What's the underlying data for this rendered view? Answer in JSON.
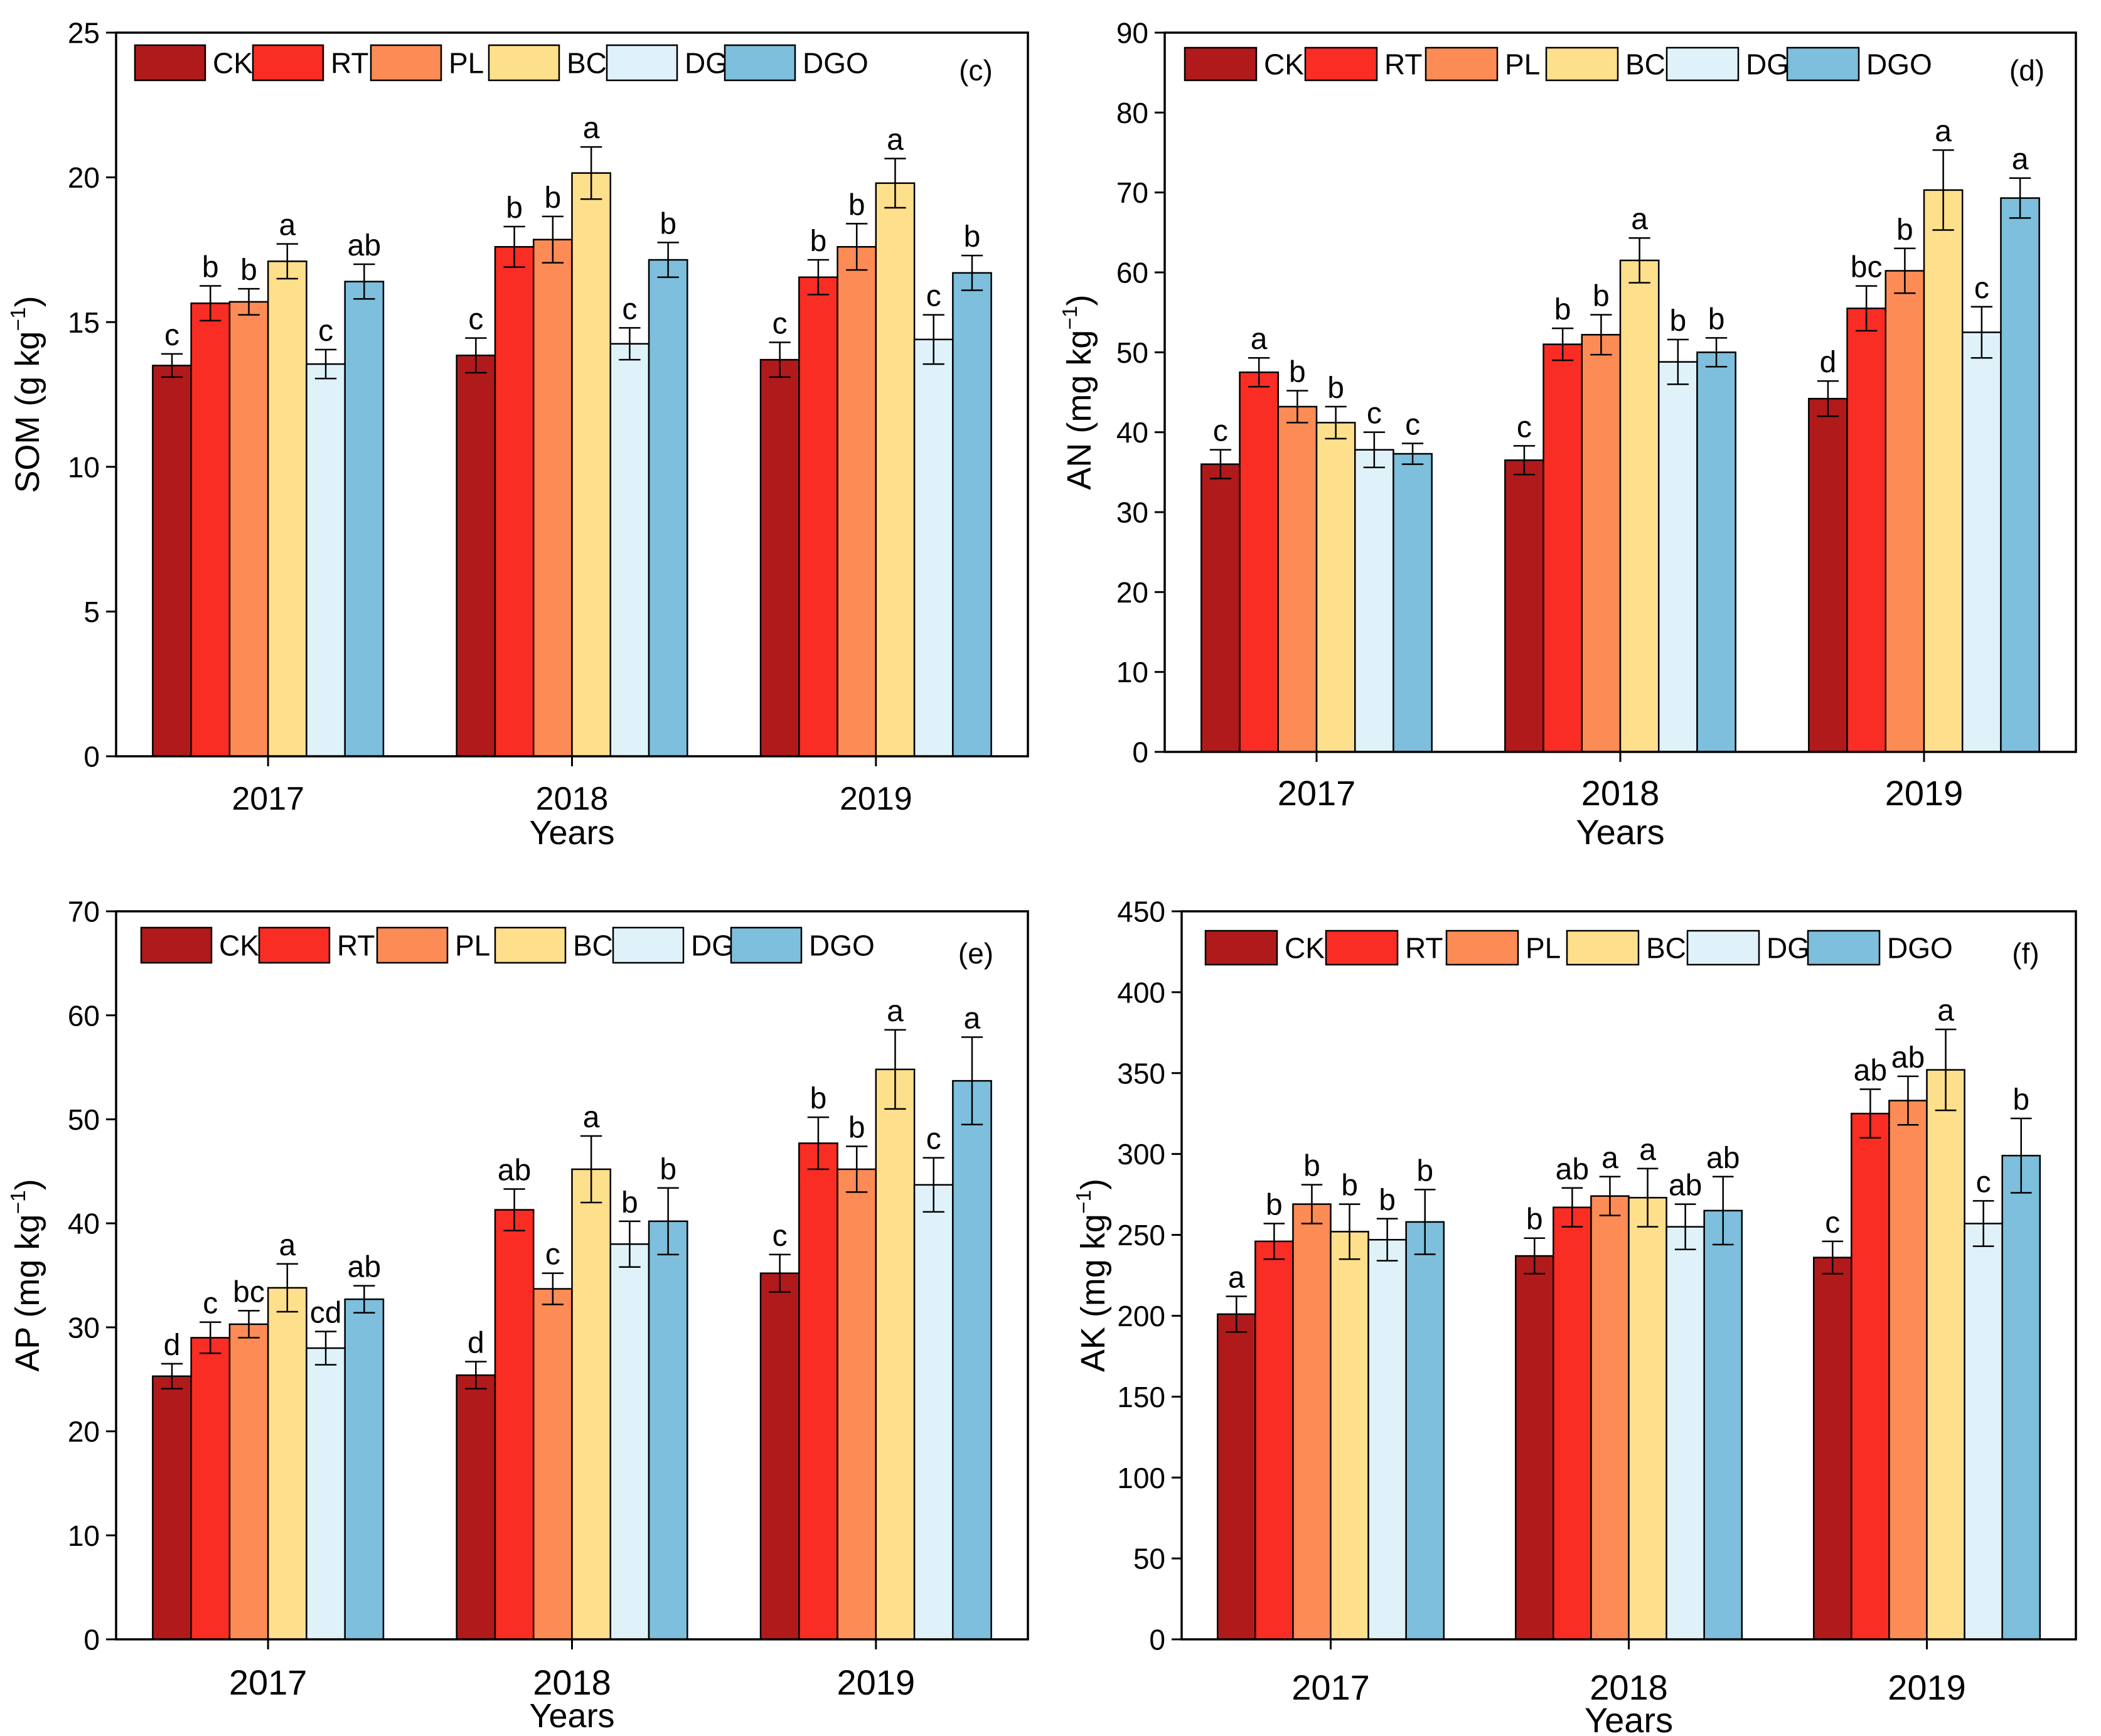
{
  "legend": [
    "CK",
    "RT",
    "PL",
    "BC",
    "DG",
    "DGO"
  ],
  "colors": [
    "#b01a1a",
    "#fa2d24",
    "#fc8b55",
    "#fedf8c",
    "#dff2f9",
    "#7dbfdc"
  ],
  "chart_data": [
    {
      "type": "bar",
      "panel_label": "(c)",
      "ylabel_main": "SOM (g kg",
      "ylabel_sup": "−1",
      "ylabel_tail": ")",
      "xlabel": "Years",
      "categories": [
        "2017",
        "2018",
        "2019"
      ],
      "ylim": [
        0,
        25
      ],
      "yticks": [
        "0",
        "5",
        "10",
        "15",
        "20",
        "25"
      ],
      "series": [
        {
          "name": "CK",
          "values": [
            13.5,
            13.85,
            13.7
          ],
          "errors": [
            0.4,
            0.6,
            0.6
          ],
          "letters": [
            "c",
            "c",
            "c"
          ]
        },
        {
          "name": "RT",
          "values": [
            15.65,
            17.6,
            16.55
          ],
          "errors": [
            0.6,
            0.7,
            0.6
          ],
          "letters": [
            "b",
            "b",
            "b"
          ]
        },
        {
          "name": "PL",
          "values": [
            15.7,
            17.85,
            17.6
          ],
          "errors": [
            0.45,
            0.8,
            0.8
          ],
          "letters": [
            "b",
            "b",
            "b"
          ]
        },
        {
          "name": "BC",
          "values": [
            17.1,
            20.15,
            19.8
          ],
          "errors": [
            0.6,
            0.9,
            0.85
          ],
          "letters": [
            "a",
            "a",
            "a"
          ]
        },
        {
          "name": "DG",
          "values": [
            13.55,
            14.25,
            14.4
          ],
          "errors": [
            0.5,
            0.55,
            0.85
          ],
          "letters": [
            "c",
            "c",
            "c"
          ]
        },
        {
          "name": "DGO",
          "values": [
            16.4,
            17.15,
            16.7
          ],
          "errors": [
            0.6,
            0.6,
            0.6
          ],
          "letters": [
            "ab",
            "b",
            "b"
          ]
        }
      ]
    },
    {
      "type": "bar",
      "panel_label": "(d)",
      "ylabel_main": "AN (mg kg",
      "ylabel_sup": "−1",
      "ylabel_tail": ")",
      "xlabel": "Years",
      "categories": [
        "2017",
        "2018",
        "2019"
      ],
      "ylim": [
        0,
        90
      ],
      "yticks": [
        "0",
        "10",
        "20",
        "30",
        "40",
        "50",
        "60",
        "70",
        "80",
        "90"
      ],
      "series": [
        {
          "name": "CK",
          "values": [
            36.0,
            36.5,
            44.2
          ],
          "errors": [
            1.8,
            1.8,
            2.2
          ],
          "letters": [
            "c",
            "c",
            "d"
          ]
        },
        {
          "name": "RT",
          "values": [
            47.5,
            51.0,
            55.5
          ],
          "errors": [
            1.8,
            2.0,
            2.8
          ],
          "letters": [
            "a",
            "b",
            "bc"
          ]
        },
        {
          "name": "PL",
          "values": [
            43.2,
            52.2,
            60.2
          ],
          "errors": [
            2.0,
            2.5,
            2.8
          ],
          "letters": [
            "b",
            "b",
            "b"
          ]
        },
        {
          "name": "BC",
          "values": [
            41.2,
            61.5,
            70.3
          ],
          "errors": [
            2.0,
            2.8,
            5.0
          ],
          "letters": [
            "b",
            "a",
            "a"
          ]
        },
        {
          "name": "DG",
          "values": [
            37.8,
            48.8,
            52.5
          ],
          "errors": [
            2.2,
            2.8,
            3.2
          ],
          "letters": [
            "c",
            "b",
            "c"
          ]
        },
        {
          "name": "DGO",
          "values": [
            37.3,
            50.0,
            69.3
          ],
          "errors": [
            1.3,
            1.8,
            2.5
          ],
          "letters": [
            "c",
            "b",
            "a"
          ]
        }
      ]
    },
    {
      "type": "bar",
      "panel_label": "(e)",
      "ylabel_main": "AP (mg kg",
      "ylabel_sup": "−1",
      "ylabel_tail": ")",
      "xlabel": "Years",
      "categories": [
        "2017",
        "2018",
        "2019"
      ],
      "ylim": [
        0,
        70
      ],
      "yticks": [
        "0",
        "10",
        "20",
        "30",
        "40",
        "50",
        "60",
        "70"
      ],
      "series": [
        {
          "name": "CK",
          "values": [
            25.3,
            25.4,
            35.2
          ],
          "errors": [
            1.2,
            1.3,
            1.8
          ],
          "letters": [
            "d",
            "d",
            "c"
          ]
        },
        {
          "name": "RT",
          "values": [
            29.0,
            41.3,
            47.7
          ],
          "errors": [
            1.5,
            2.0,
            2.5
          ],
          "letters": [
            "c",
            "ab",
            "b"
          ]
        },
        {
          "name": "PL",
          "values": [
            30.3,
            33.7,
            45.2
          ],
          "errors": [
            1.3,
            1.5,
            2.2
          ],
          "letters": [
            "bc",
            "c",
            "b"
          ]
        },
        {
          "name": "BC",
          "values": [
            33.8,
            45.2,
            54.8
          ],
          "errors": [
            2.3,
            3.2,
            3.8
          ],
          "letters": [
            "a",
            "a",
            "a"
          ]
        },
        {
          "name": "DG",
          "values": [
            28.0,
            38.0,
            43.7
          ],
          "errors": [
            1.6,
            2.2,
            2.6
          ],
          "letters": [
            "cd",
            "b",
            "c"
          ]
        },
        {
          "name": "DGO",
          "values": [
            32.7,
            40.2,
            53.7
          ],
          "errors": [
            1.3,
            3.2,
            4.2
          ],
          "letters": [
            "ab",
            "b",
            "a"
          ]
        }
      ]
    },
    {
      "type": "bar",
      "panel_label": "(f)",
      "ylabel_main": "AK (mg kg",
      "ylabel_sup": "−1",
      "ylabel_tail": ")",
      "xlabel": "Years",
      "categories": [
        "2017",
        "2018",
        "2019"
      ],
      "ylim": [
        0,
        450
      ],
      "yticks": [
        "0",
        "50",
        "100",
        "150",
        "200",
        "250",
        "300",
        "350",
        "400",
        "450"
      ],
      "series": [
        {
          "name": "CK",
          "values": [
            201,
            237,
            236
          ],
          "errors": [
            11,
            11,
            10
          ],
          "letters": [
            "a",
            "b",
            "c"
          ]
        },
        {
          "name": "RT",
          "values": [
            246,
            267,
            325
          ],
          "errors": [
            11,
            12,
            15
          ],
          "letters": [
            "b",
            "ab",
            "ab"
          ]
        },
        {
          "name": "PL",
          "values": [
            269,
            274,
            333
          ],
          "errors": [
            12,
            12,
            15
          ],
          "letters": [
            "b",
            "a",
            "ab"
          ]
        },
        {
          "name": "BC",
          "values": [
            252,
            273,
            352
          ],
          "errors": [
            17,
            18,
            25
          ],
          "letters": [
            "b",
            "a",
            "a"
          ]
        },
        {
          "name": "DG",
          "values": [
            247,
            255,
            257
          ],
          "errors": [
            13,
            14,
            14
          ],
          "letters": [
            "b",
            "ab",
            "c"
          ]
        },
        {
          "name": "DGO",
          "values": [
            258,
            265,
            299
          ],
          "errors": [
            20,
            21,
            23
          ],
          "letters": [
            "b",
            "ab",
            "b"
          ]
        }
      ]
    }
  ]
}
